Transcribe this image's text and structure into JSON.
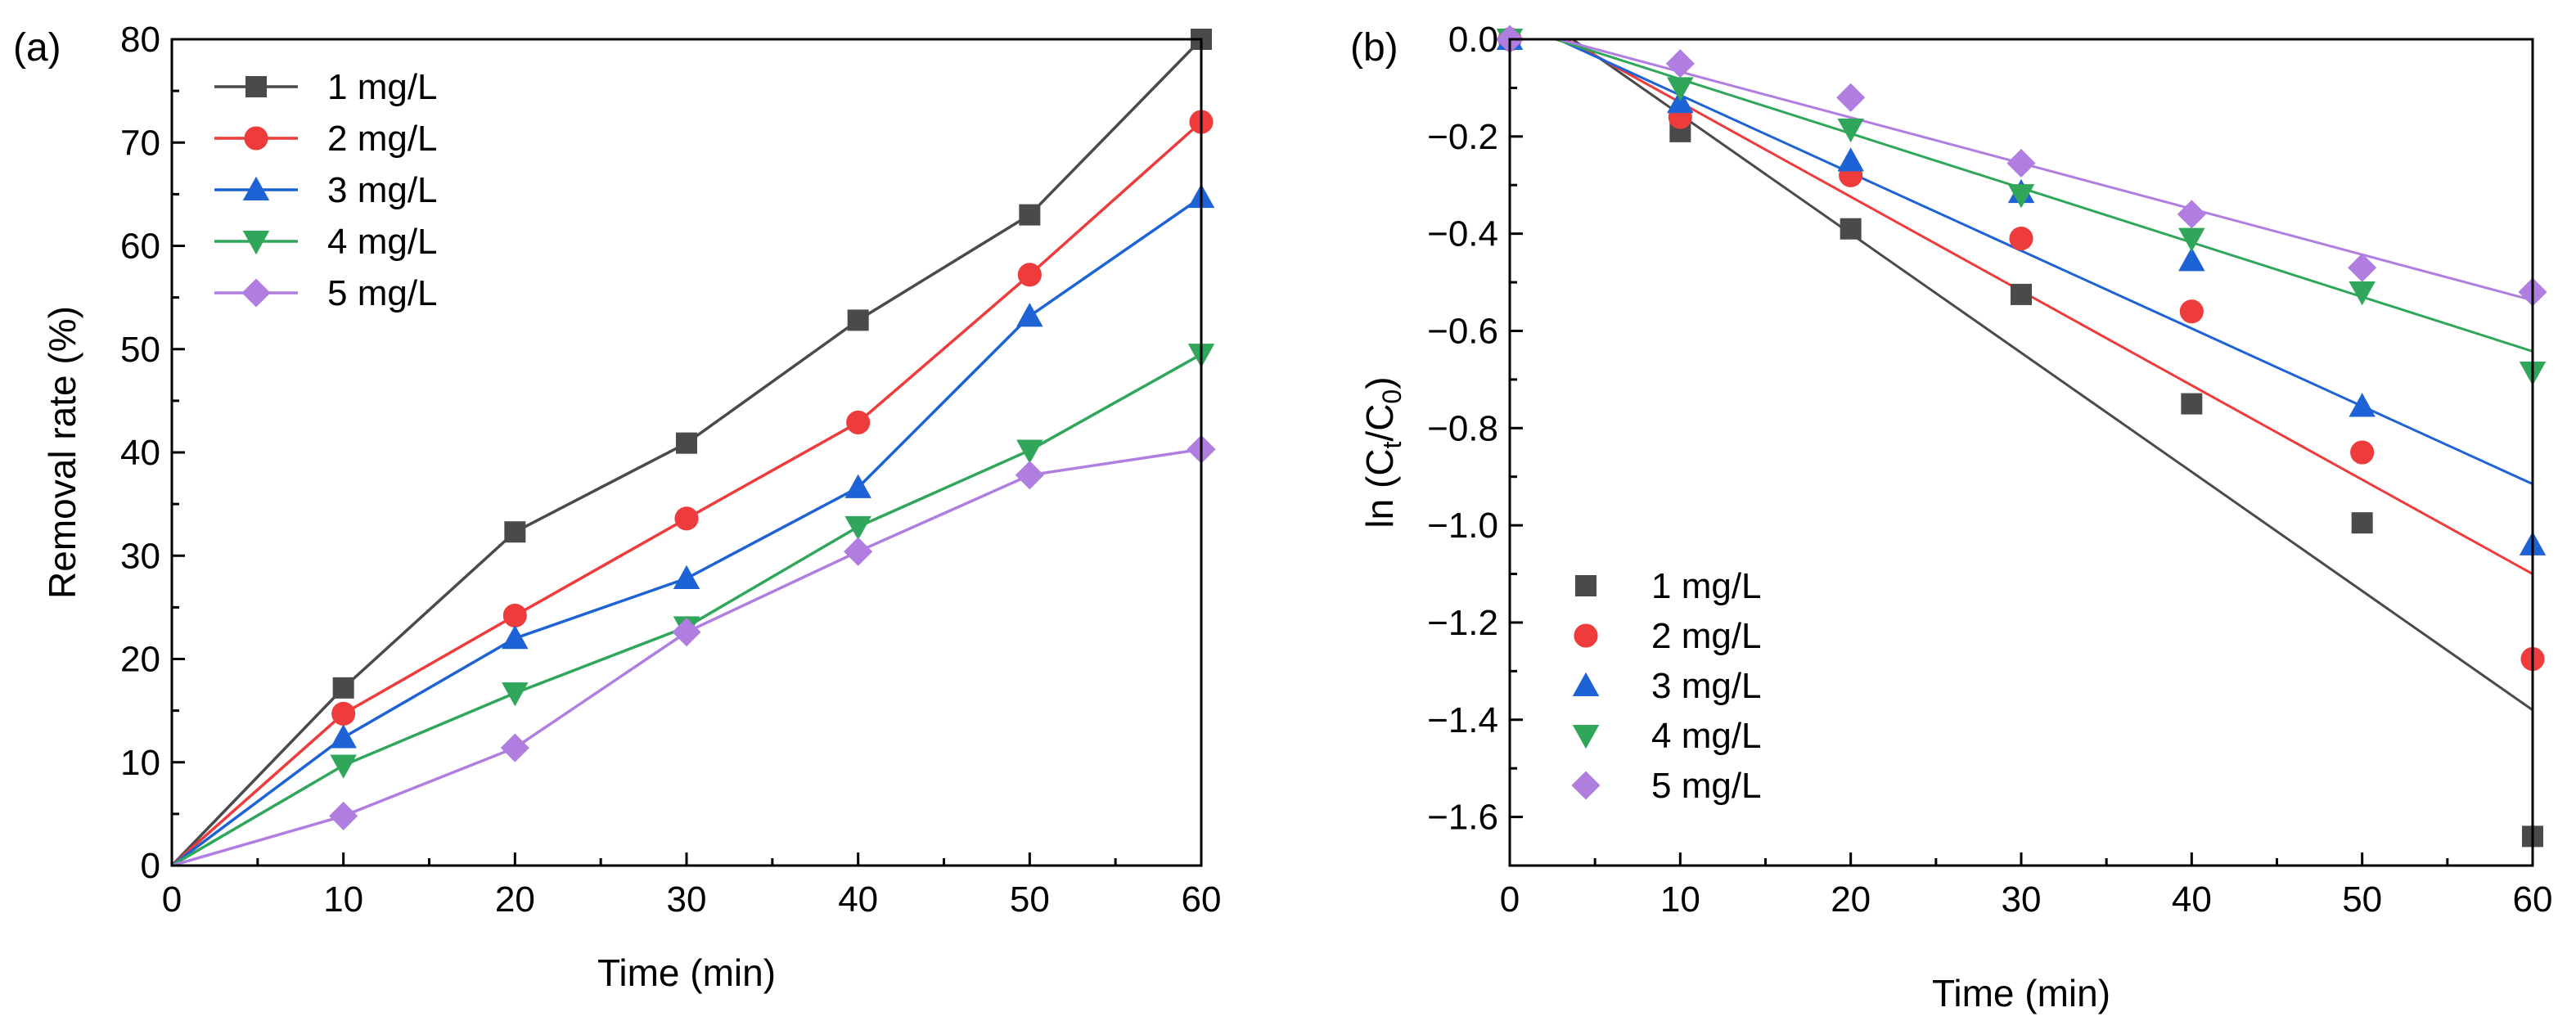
{
  "chart_data": [
    {
      "type": "line",
      "panel_label": "(a)",
      "xlabel": "Time (min)",
      "ylabel": "Removal rate (%)",
      "xlim": [
        0,
        60
      ],
      "ylim": [
        0,
        80
      ],
      "xticks": [
        0,
        10,
        20,
        30,
        40,
        50,
        60
      ],
      "yticks": [
        0,
        10,
        20,
        30,
        40,
        50,
        60,
        70,
        80
      ],
      "x": [
        0,
        10,
        20,
        30,
        40,
        50,
        60
      ],
      "legend_position": "top-left",
      "series": [
        {
          "name": "1 mg/L",
          "color": "#4a4a4a",
          "marker": "square",
          "values": [
            0,
            17.2,
            32.3,
            40.9,
            52.8,
            63.0,
            80.0
          ]
        },
        {
          "name": "2 mg/L",
          "color": "#ee3b3b",
          "marker": "circle",
          "values": [
            0,
            14.7,
            24.2,
            33.6,
            42.9,
            57.2,
            72.0
          ]
        },
        {
          "name": "3 mg/L",
          "color": "#1e63d6",
          "marker": "triangle-up",
          "values": [
            0,
            12.4,
            22.0,
            27.8,
            36.6,
            53.2,
            64.7
          ]
        },
        {
          "name": "4 mg/L",
          "color": "#2fa65a",
          "marker": "triangle-down",
          "values": [
            0,
            9.7,
            16.7,
            23.1,
            32.8,
            40.2,
            49.5
          ]
        },
        {
          "name": "5 mg/L",
          "color": "#b07ee0",
          "marker": "diamond",
          "values": [
            0,
            4.8,
            11.4,
            22.6,
            30.4,
            37.8,
            40.3
          ]
        }
      ]
    },
    {
      "type": "scatter",
      "panel_label": "(b)",
      "xlabel": "Time (min)",
      "ylabel_main": "ln (C",
      "ylabel_sub1": "t",
      "ylabel_mid": "/C",
      "ylabel_sub2": "0",
      "ylabel_end": ")",
      "xlim": [
        0,
        60
      ],
      "ylim": [
        -1.7,
        0
      ],
      "xticks": [
        0,
        10,
        20,
        30,
        40,
        50,
        60
      ],
      "yticks": [
        0.0,
        -0.2,
        -0.4,
        -0.6,
        -0.8,
        -1.0,
        -1.2,
        -1.4,
        -1.6
      ],
      "ytick_labels": [
        "0.0",
        "-0.2",
        "-0.4",
        "-0.6",
        "-0.8",
        "-1.0",
        "-1.2",
        "-1.4",
        "-1.6"
      ],
      "x": [
        0,
        10,
        20,
        30,
        40,
        50,
        60
      ],
      "legend_position": "bottom-left",
      "series": [
        {
          "name": "1 mg/L",
          "color": "#4a4a4a",
          "marker": "square",
          "values": [
            0,
            -0.19,
            -0.39,
            -0.525,
            -0.75,
            -0.995,
            -1.64
          ],
          "fit": {
            "x0": 0,
            "y0": 0.09,
            "slope": -0.0245
          }
        },
        {
          "name": "2 mg/L",
          "color": "#ee3b3b",
          "marker": "circle",
          "values": [
            0,
            -0.16,
            -0.28,
            -0.41,
            -0.56,
            -0.85,
            -1.275
          ],
          "fit": {
            "x0": 0,
            "y0": 0.064,
            "slope": -0.0194
          }
        },
        {
          "name": "3 mg/L",
          "color": "#1e63d6",
          "marker": "triangle-up",
          "values": [
            0,
            -0.13,
            -0.25,
            -0.315,
            -0.455,
            -0.755,
            -1.04
          ],
          "fit": {
            "x0": 0,
            "y0": 0.045,
            "slope": -0.016
          }
        },
        {
          "name": "4 mg/L",
          "color": "#2fa65a",
          "marker": "triangle-down",
          "values": [
            0,
            -0.1,
            -0.185,
            -0.32,
            -0.41,
            -0.52,
            -0.685
          ],
          "fit": {
            "x0": 0,
            "y0": 0.03,
            "slope": -0.0112
          }
        },
        {
          "name": "5 mg/L",
          "color": "#b07ee0",
          "marker": "diamond",
          "values": [
            0,
            -0.05,
            -0.12,
            -0.255,
            -0.36,
            -0.47,
            -0.52
          ],
          "fit": {
            "x0": 0,
            "y0": 0.027,
            "slope": -0.0094
          }
        }
      ]
    }
  ]
}
